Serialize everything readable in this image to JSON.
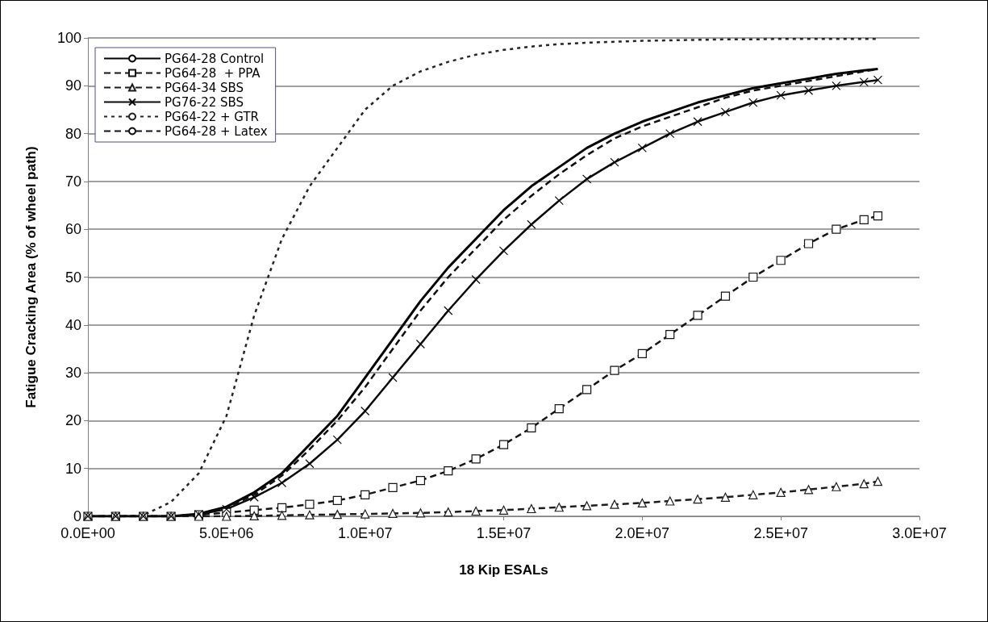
{
  "chart_data": {
    "type": "line",
    "xlabel": "18 Kip ESALs",
    "ylabel": "Fatigue Cracking Area (% of wheel path)",
    "x": [
      0,
      1000000,
      2000000,
      3000000,
      4000000,
      5000000,
      6000000,
      7000000,
      8000000,
      9000000,
      10000000,
      11000000,
      12000000,
      13000000,
      14000000,
      15000000,
      16000000,
      17000000,
      18000000,
      19000000,
      20000000,
      21000000,
      22000000,
      23000000,
      24000000,
      25000000,
      26000000,
      27000000,
      28000000,
      28500000
    ],
    "series": [
      {
        "name": "PG64-28 Control",
        "color": "#000000",
        "line_style": "solid",
        "marker": "none",
        "values": [
          0,
          0,
          0,
          0,
          0.5,
          2,
          5,
          9,
          15,
          21,
          29,
          37,
          45,
          52,
          58,
          64,
          69,
          73,
          77,
          80,
          82.5,
          84.5,
          86.5,
          88,
          89.5,
          90.5,
          91.5,
          92.5,
          93.2,
          93.5
        ]
      },
      {
        "name": "PG64-28  + PPA",
        "color": "#141414",
        "line_style": "dashed",
        "marker": "square",
        "values": [
          0,
          0,
          0,
          0,
          0.3,
          0.8,
          1.3,
          1.8,
          2.5,
          3.3,
          4.5,
          6,
          7.5,
          9.5,
          12,
          15,
          18.5,
          22.5,
          26.5,
          30.5,
          34,
          38,
          42,
          46,
          50,
          53.5,
          57,
          60,
          62,
          62.8
        ]
      },
      {
        "name": "PG64-34 SBS",
        "color": "#1c1c1c",
        "line_style": "dashed",
        "marker": "triangle",
        "values": [
          0,
          0,
          0,
          0,
          0,
          0,
          0.1,
          0.2,
          0.3,
          0.4,
          0.5,
          0.6,
          0.7,
          0.9,
          1.1,
          1.3,
          1.6,
          1.9,
          2.2,
          2.5,
          2.8,
          3.2,
          3.6,
          4,
          4.5,
          5,
          5.6,
          6.2,
          6.8,
          7.3
        ]
      },
      {
        "name": "PG76-22 SBS",
        "color": "#0a0a0a",
        "line_style": "solid",
        "marker": "cross",
        "values": [
          0,
          0,
          0,
          0,
          0.4,
          1.5,
          4,
          7,
          11,
          16,
          22,
          29,
          36,
          43,
          49.5,
          55.5,
          61,
          66,
          70.5,
          74,
          77,
          80,
          82.5,
          84.5,
          86.5,
          88,
          89,
          90,
          90.8,
          91.2
        ]
      },
      {
        "name": "PG64-22 + GTR",
        "color": "#242424",
        "line_style": "dotted",
        "marker": "none",
        "values": [
          0,
          0,
          0.2,
          3,
          9,
          21,
          42,
          58,
          69,
          77,
          85,
          90,
          93,
          95,
          96.5,
          97.5,
          98.2,
          98.7,
          99,
          99.2,
          99.4,
          99.5,
          99.6,
          99.7,
          99.7,
          99.8,
          99.8,
          99.8,
          99.8,
          99.8
        ]
      },
      {
        "name": "PG64-28 + Latex",
        "color": "#101010",
        "line_style": "dashed",
        "marker": "none",
        "values": [
          0,
          0,
          0,
          0,
          0.4,
          1.8,
          4.5,
          8.5,
          14,
          20,
          27,
          35,
          43,
          50,
          56,
          62,
          67,
          71.5,
          75.5,
          79,
          81.5,
          83.5,
          85.5,
          87.5,
          89,
          90,
          91,
          92,
          93,
          93.5
        ]
      }
    ],
    "xlim": [
      0,
      30000000
    ],
    "xticks": [
      {
        "value": 0,
        "label": "0.0E+00"
      },
      {
        "value": 5000000,
        "label": "5.0E+06"
      },
      {
        "value": 10000000,
        "label": "1.0E+07"
      },
      {
        "value": 15000000,
        "label": "1.5E+07"
      },
      {
        "value": 20000000,
        "label": "2.0E+07"
      },
      {
        "value": 25000000,
        "label": "2.5E+07"
      },
      {
        "value": 30000000,
        "label": "3.0E+07"
      }
    ],
    "ylim": [
      0,
      100
    ],
    "yticks": [
      0,
      10,
      20,
      30,
      40,
      50,
      60,
      70,
      80,
      90,
      100
    ],
    "grid": "y",
    "legend": "top left"
  }
}
